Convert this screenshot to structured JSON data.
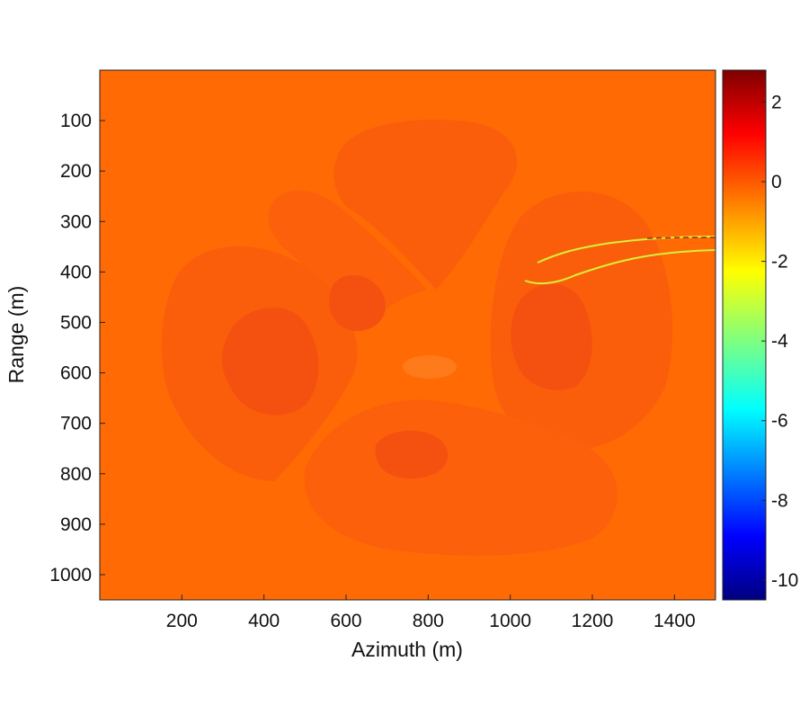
{
  "chart_data": {
    "type": "heatmap",
    "title": "",
    "xlabel": "Azimuth (m)",
    "ylabel": "Range (m)",
    "xlim": [
      0,
      1500
    ],
    "ylim": [
      1050,
      0
    ],
    "y_axis_inverted": true,
    "x_ticks": [
      200,
      400,
      600,
      800,
      1000,
      1200,
      1400
    ],
    "x_tick_labels": [
      "200",
      "400",
      "600",
      "800",
      "1000",
      "1200",
      "1400"
    ],
    "y_ticks": [
      100,
      200,
      300,
      400,
      500,
      600,
      700,
      800,
      900,
      1000
    ],
    "y_tick_labels": [
      "100",
      "200",
      "300",
      "400",
      "500",
      "600",
      "700",
      "800",
      "900",
      "1000"
    ],
    "colorbar": {
      "colormap": "jet",
      "range": [
        -10.5,
        2.8
      ],
      "ticks": [
        2,
        0,
        -2,
        -4,
        -6,
        -8,
        -10
      ],
      "tick_labels": [
        "2",
        "0",
        "-2",
        "-4",
        "-6",
        "-8",
        "-10"
      ]
    },
    "background_value": 0.2,
    "regions": [
      {
        "name": "top-lobe",
        "value": 0.45
      },
      {
        "name": "left-lobe-outer",
        "value": 0.45
      },
      {
        "name": "left-lobe-core",
        "value": 0.75
      },
      {
        "name": "left-upper-band",
        "value": 0.4
      },
      {
        "name": "right-lobe-outer",
        "value": 0.45
      },
      {
        "name": "right-lobe-core",
        "value": 0.8
      },
      {
        "name": "bottom-lobe",
        "value": 0.4
      },
      {
        "name": "small-spot-upper-left",
        "value": 0.7
      },
      {
        "name": "small-spot-lower-center",
        "value": 0.75
      },
      {
        "name": "center-spot",
        "value": -0.1
      }
    ],
    "streak": {
      "description": "thin fringe lines extending from right lobe to right edge",
      "value_range": [
        -2.5,
        -1.0
      ]
    },
    "grid": false
  },
  "colors": {
    "background_field": "#FF6A05",
    "lobe": "#FB5E0A",
    "core": "#F45010",
    "spot_light": "#FF7A1A",
    "streak": "#D6F03A"
  }
}
